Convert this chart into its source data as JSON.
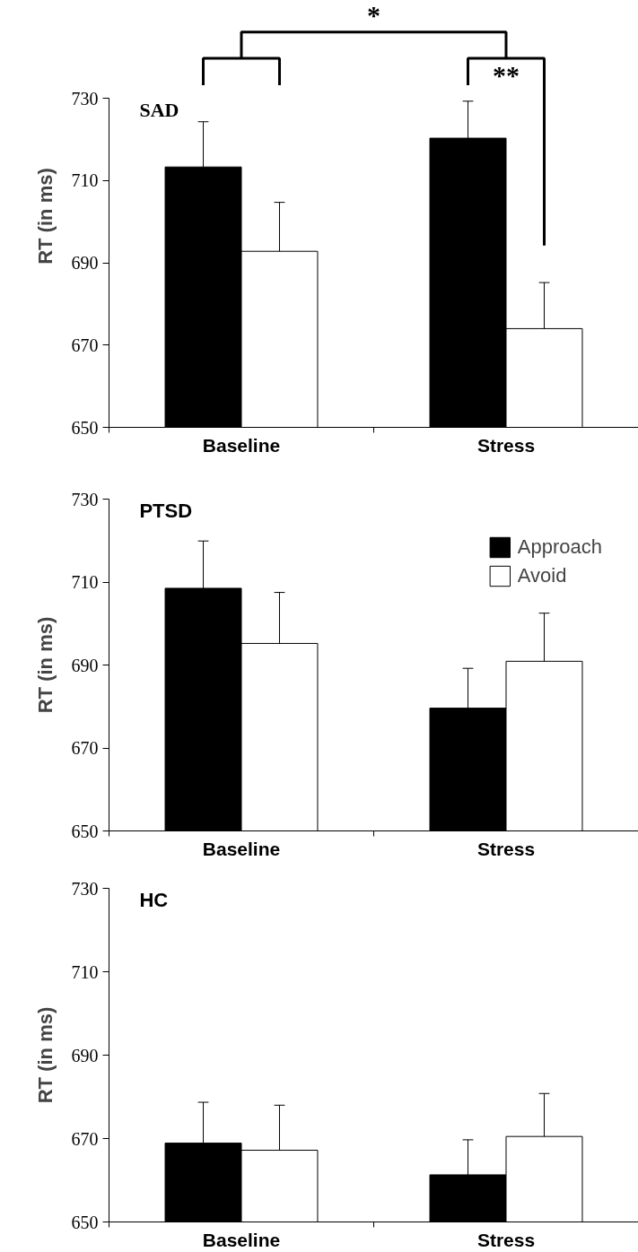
{
  "chart_data": [
    {
      "type": "bar",
      "title": "SAD",
      "ylabel": "RT (in ms)",
      "categories": [
        "Baseline",
        "Stress"
      ],
      "ylim": [
        650,
        730
      ],
      "yticks": [
        650,
        670,
        690,
        710,
        730
      ],
      "grid": false,
      "legend": false,
      "annotations": [
        "*",
        "**"
      ],
      "series": [
        {
          "color": "#000000",
          "values": [
            713.3,
            720.3
          ],
          "errors": [
            [
              713.3,
              724.3
            ],
            [
              720.3,
              729.3
            ]
          ]
        },
        {
          "color": "#ffffff",
          "values": [
            692.8,
            674.0
          ],
          "errors": [
            [
              692.8,
              704.7
            ],
            [
              674.0,
              685.2
            ]
          ]
        }
      ]
    },
    {
      "type": "bar",
      "title": "PTSD",
      "ylabel": "RT (in ms)",
      "categories": [
        "Baseline",
        "Stress"
      ],
      "ylim": [
        650,
        730
      ],
      "yticks": [
        650,
        670,
        690,
        710,
        730
      ],
      "grid": false,
      "legend": "top right",
      "series": [
        {
          "name": "Approach",
          "color": "#000000",
          "values": [
            708.5,
            679.6
          ],
          "errors": [
            [
              708.5,
              719.9
            ],
            [
              679.6,
              689.2
            ]
          ]
        },
        {
          "name": "Avoid",
          "color": "#ffffff",
          "values": [
            695.2,
            690.9
          ],
          "errors": [
            [
              695.2,
              707.5
            ],
            [
              690.9,
              702.5
            ]
          ]
        }
      ]
    },
    {
      "type": "bar",
      "title": "HC",
      "ylabel": "RT (in ms)",
      "categories": [
        "Baseline",
        "Stress"
      ],
      "ylim": [
        650,
        730
      ],
      "yticks": [
        650,
        670,
        690,
        710,
        730
      ],
      "grid": false,
      "legend": false,
      "series": [
        {
          "color": "#000000",
          "values": [
            668.9,
            661.3
          ],
          "errors": [
            [
              668.9,
              678.7
            ],
            [
              661.3,
              669.7
            ]
          ]
        },
        {
          "color": "#ffffff",
          "values": [
            667.2,
            670.5
          ],
          "errors": [
            [
              667.2,
              678.0
            ],
            [
              670.5,
              680.8
            ]
          ]
        }
      ]
    }
  ]
}
